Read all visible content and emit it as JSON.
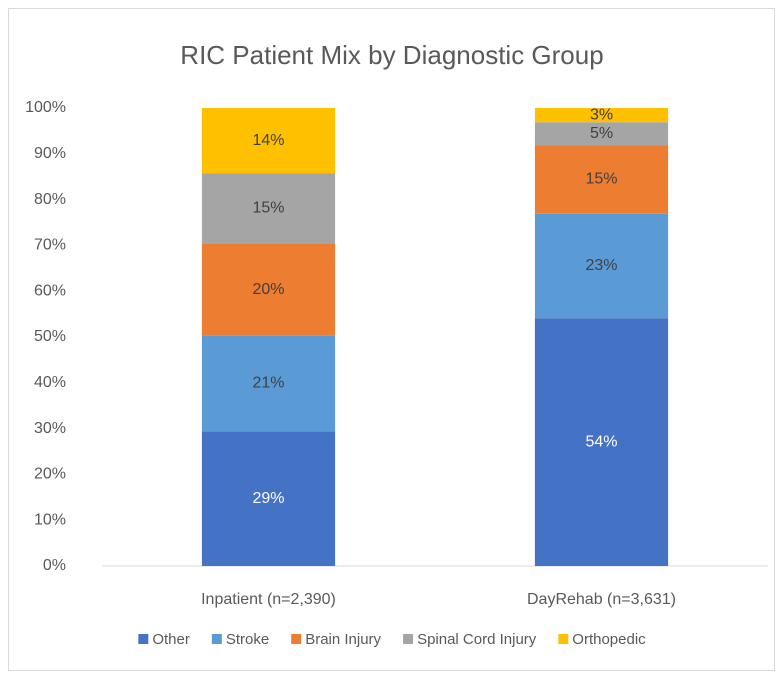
{
  "chart_data": {
    "type": "stacked_bar",
    "title": "RIC Patient Mix by Diagnostic Group",
    "categories": [
      "Inpatient (n=2,390)",
      "DayRehab (n=3,631)"
    ],
    "series": [
      {
        "name": "Other",
        "color": "#4472c4",
        "values": [
          29.4,
          54.1
        ],
        "value_labels": [
          "29%",
          "54%"
        ]
      },
      {
        "name": "Stroke",
        "color": "#5b9bd5",
        "values": [
          20.9,
          22.8
        ],
        "value_labels": [
          "21%",
          "23%"
        ]
      },
      {
        "name": "Brain Injury",
        "color": "#ed7d31",
        "values": [
          20.1,
          15.0
        ],
        "value_labels": [
          "20%",
          "15%"
        ]
      },
      {
        "name": "Spinal Cord Injury",
        "color": "#a5a5a5",
        "values": [
          15.3,
          5.0
        ],
        "value_labels": [
          "15%",
          "5%"
        ]
      },
      {
        "name": "Orthopedic",
        "color": "#ffc000",
        "values": [
          14.3,
          3.1
        ],
        "value_labels": [
          "14%",
          "3%"
        ]
      }
    ],
    "ylim": [
      0,
      100
    ],
    "yticks": [
      {
        "value": 0,
        "label": "0%"
      },
      {
        "value": 10,
        "label": "10%"
      },
      {
        "value": 20,
        "label": "20%"
      },
      {
        "value": 30,
        "label": "30%"
      },
      {
        "value": 40,
        "label": "40%"
      },
      {
        "value": 50,
        "label": "50%"
      },
      {
        "value": 60,
        "label": "60%"
      },
      {
        "value": 70,
        "label": "70%"
      },
      {
        "value": 80,
        "label": "80%"
      },
      {
        "value": 90,
        "label": "90%"
      },
      {
        "value": 100,
        "label": "100%"
      }
    ],
    "grid": false,
    "legend": "bottom"
  }
}
